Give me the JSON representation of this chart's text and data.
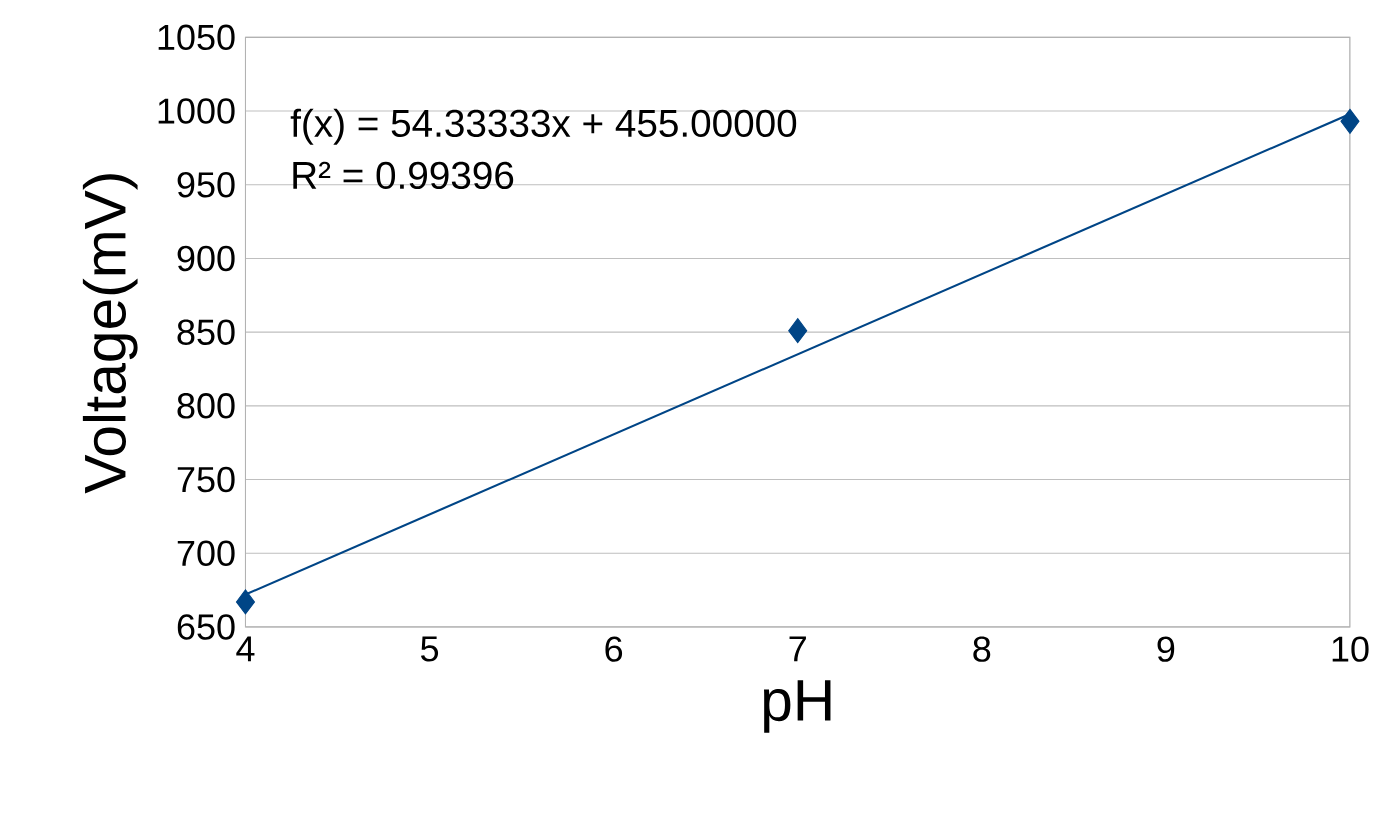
{
  "chart_data": {
    "type": "scatter",
    "xlabel": "pH",
    "ylabel": "Voltage(mV)",
    "x": [
      4,
      7,
      10
    ],
    "series": [
      {
        "color": "#004586",
        "values": [
          667,
          851,
          993
        ]
      },
      {
        "type": "line",
        "x": [
          4,
          10
        ],
        "values": [
          672,
          998
        ],
        "color": "#004586",
        "marker": "none"
      }
    ],
    "marker": "diamond",
    "xlim": [
      4,
      10
    ],
    "ylim": [
      650,
      1050
    ],
    "xticks": [
      4,
      5,
      6,
      7,
      8,
      9,
      10
    ],
    "yticks": [
      650,
      700,
      750,
      800,
      850,
      900,
      950,
      1000,
      1050
    ],
    "grid": "y",
    "annotations": [
      "f(x) = 54.33333x + 455.00000",
      "R² = 0.99396"
    ]
  }
}
